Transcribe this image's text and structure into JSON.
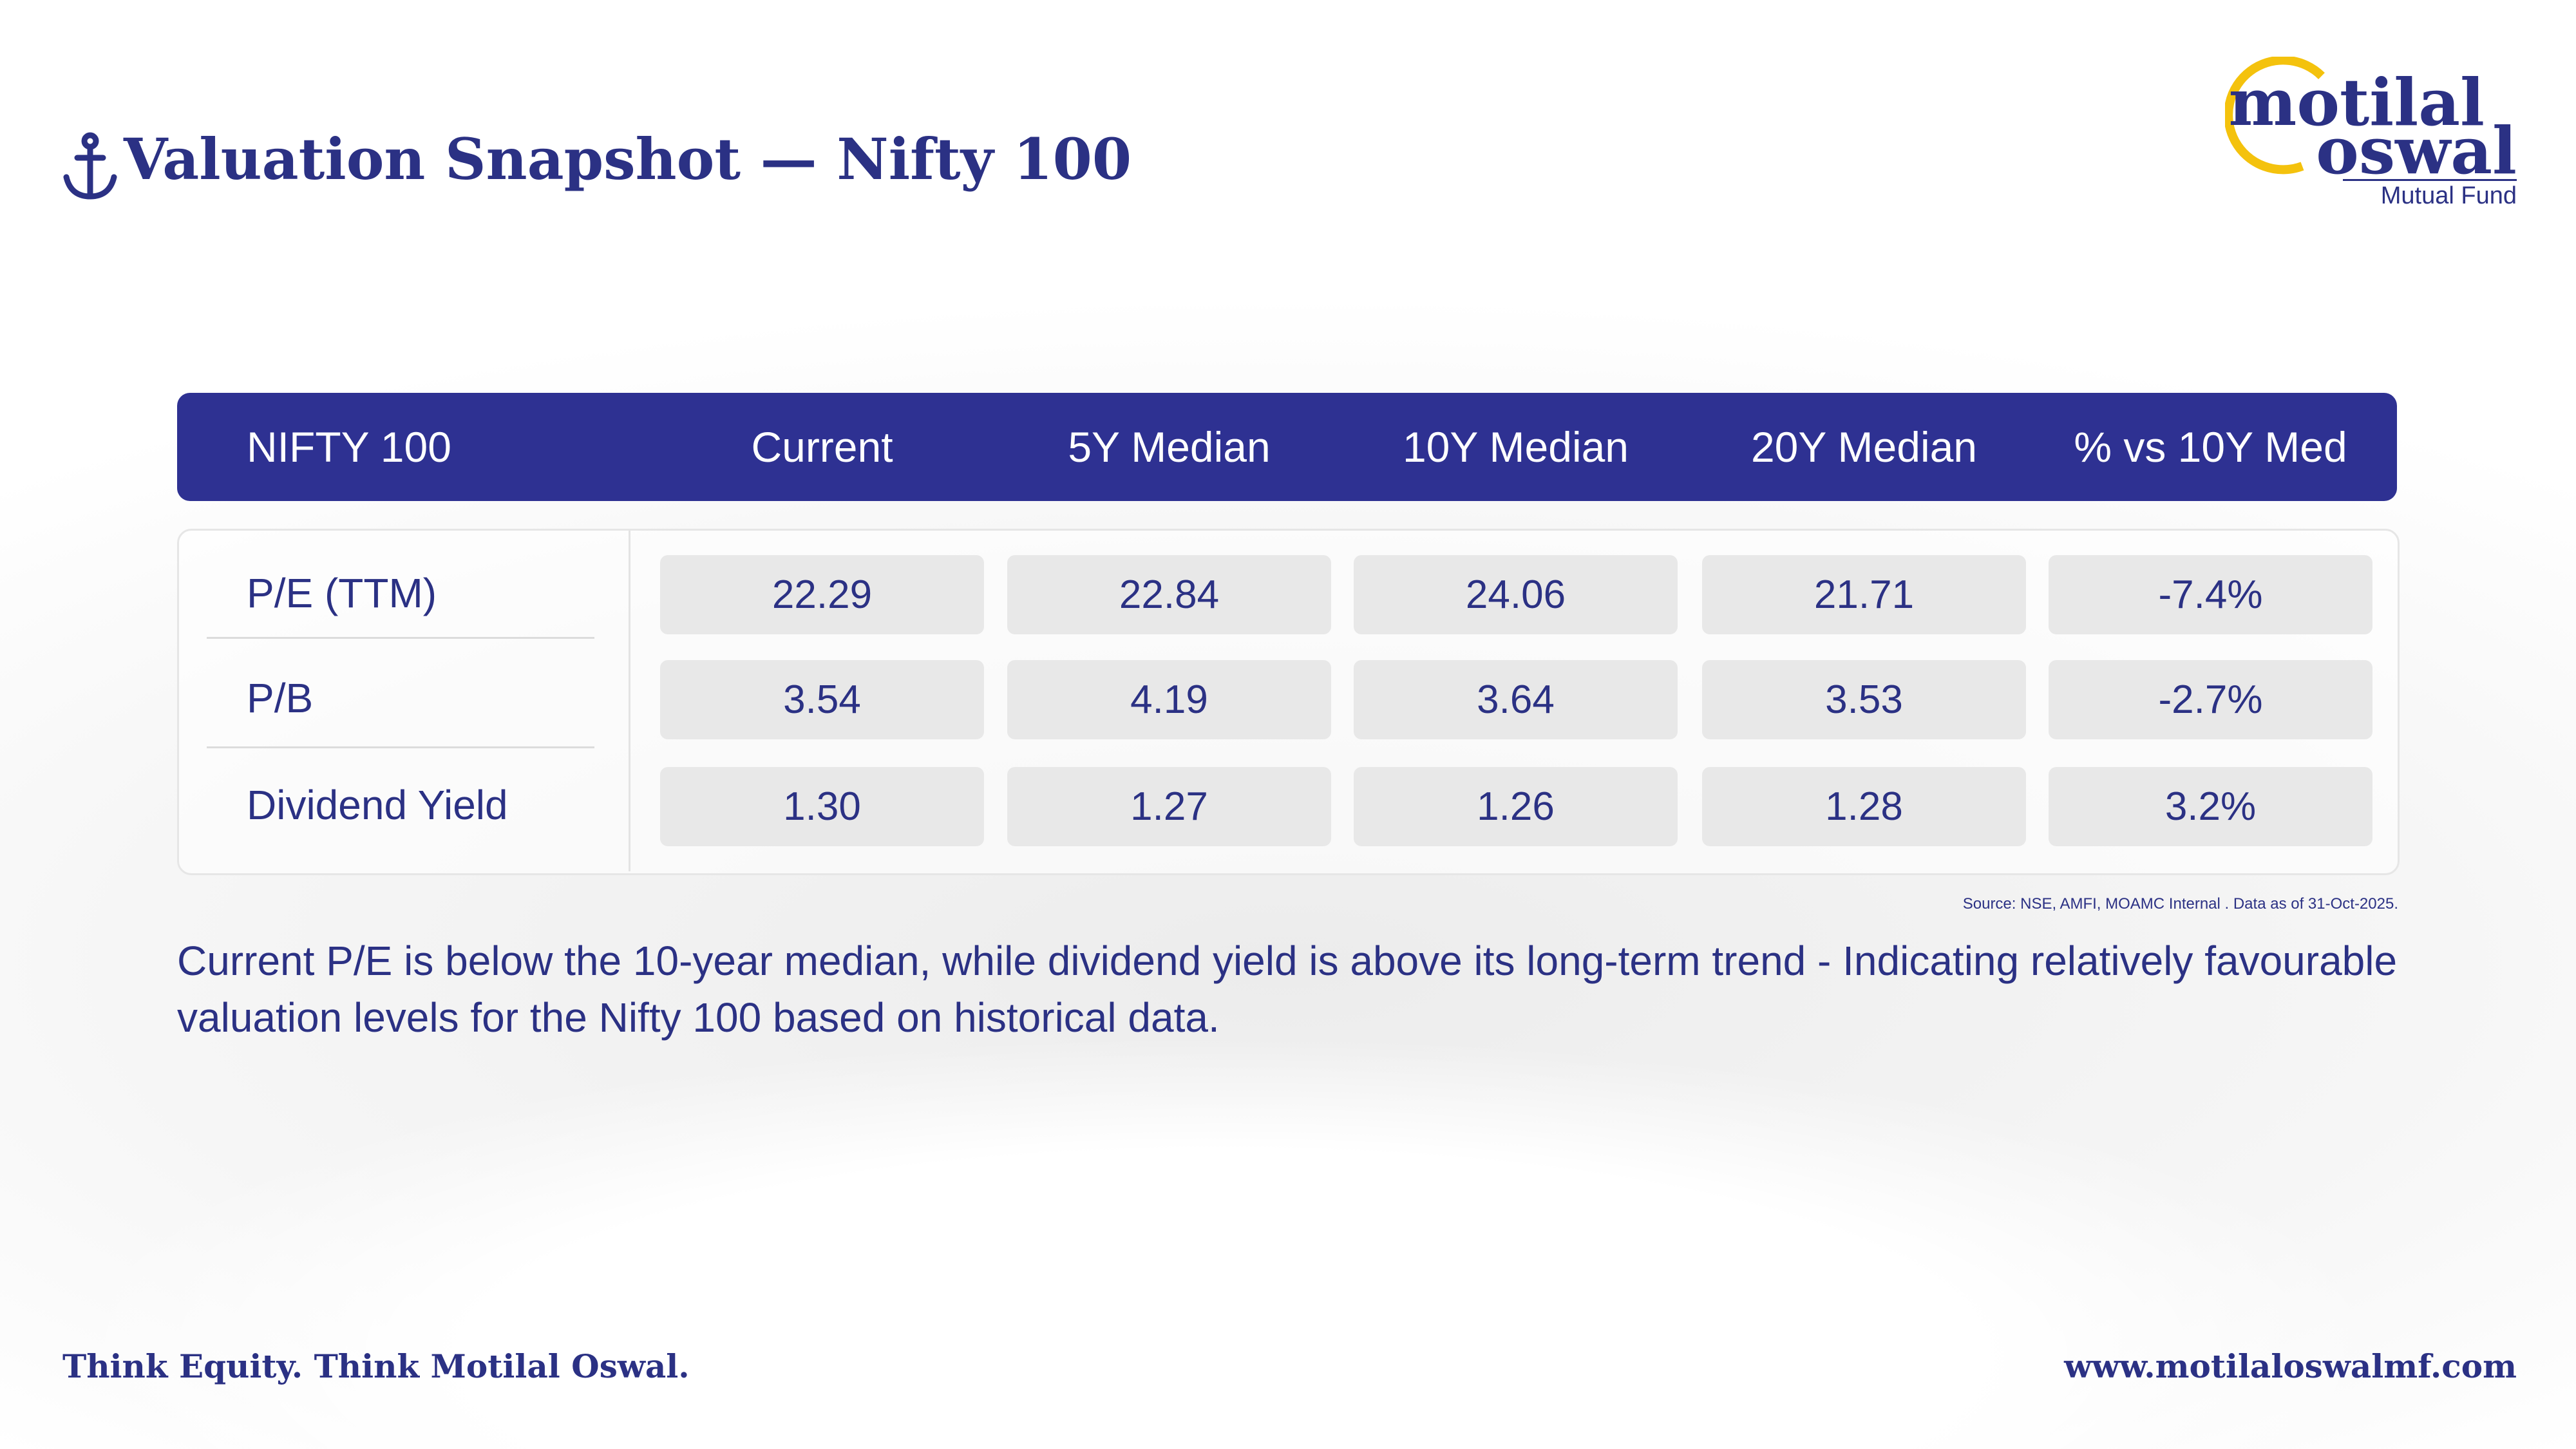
{
  "header": {
    "title": "Valuation Snapshot — Nifty 100"
  },
  "logo": {
    "line1": "motilal",
    "line2": "oswal",
    "line3": "Mutual Fund"
  },
  "table": {
    "columns": [
      "NIFTY 100",
      "Current",
      "5Y Median",
      "10Y Median",
      "20Y Median",
      "% vs 10Y Med"
    ],
    "rows": [
      [
        "P/E (TTM)",
        "22.29",
        "22.84",
        "24.06",
        "21.71",
        "-7.4%"
      ],
      [
        "P/B",
        "3.54",
        "4.19",
        "3.64",
        "3.53",
        "-2.7%"
      ],
      [
        "Dividend Yield",
        "1.30",
        "1.27",
        "1.26",
        "1.28",
        "3.2%"
      ]
    ]
  },
  "source": "Source: NSE, AMFI, MOAMC Internal . Data as of 31-Oct-2025.",
  "summary": "Current P/E is below the 10-year median, while dividend yield is above its long-term trend - Indicating relatively favourable valuation levels for the Nifty 100 based on historical data.",
  "footer": {
    "tagline": "Think Equity. Think Motilal Oswal.",
    "website": "www.motilaloswalmf.com"
  }
}
